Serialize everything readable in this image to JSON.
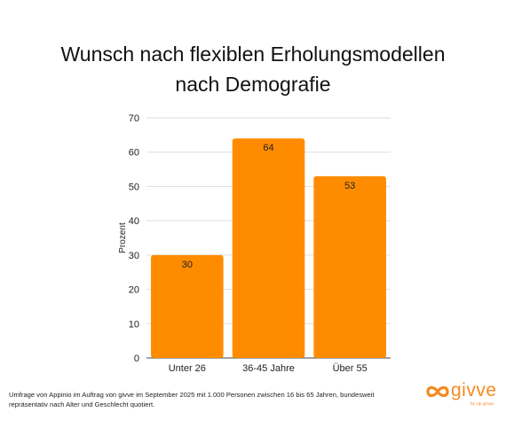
{
  "title_lines": [
    "Wunsch nach flexiblen Erholungsmodellen",
    "nach Demografie"
  ],
  "footnote": "Umfrage von Appinio im Auftrag von givve im September 2025 mit 1.000 Personen zwischen 16 bis 65 Jahren, bundesweit repräsentativ nach Alter und Geschlecht quotiert.",
  "brand": {
    "name": "givve",
    "subtitle": "by Up group",
    "color": "#f5891f"
  },
  "chart_data": {
    "type": "bar",
    "title": "Wunsch nach flexiblen Erholungsmodellen nach Demografie",
    "categories": [
      "Unter 26",
      "36-45 Jahre",
      "Über 55"
    ],
    "values": [
      30,
      64,
      53
    ],
    "data_labels": [
      "30",
      "64",
      "53"
    ],
    "xlabel": "",
    "ylabel": "Prozent",
    "ylim": [
      0,
      70
    ],
    "yticks": [
      0,
      10,
      20,
      30,
      40,
      50,
      60,
      70
    ],
    "grid": true,
    "legend": "none",
    "bar_color": "#ff8c00",
    "grid_color": "#dddddd"
  }
}
